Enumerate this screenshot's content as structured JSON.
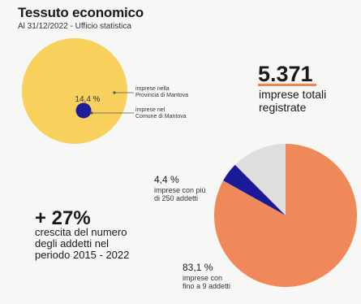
{
  "header": {
    "title": "Tessuto economico",
    "subtitle": "Al 31/12/2022 - Ufficio statistica"
  },
  "colors": {
    "province_circle": "#f7d15c",
    "comune_circle": "#1e1e9a",
    "accent_line": "#f0864f",
    "pie_small": "#f0895a",
    "pie_large": "#1a1a99",
    "pie_other": "#dedede"
  },
  "stats": {
    "total_value": "5.371",
    "total_label_line1": "imprese totali",
    "total_label_line2": "registrate",
    "growth_value": "+ 27%",
    "growth_line1": "crescita del numero",
    "growth_line2": "degli addetti nel",
    "growth_line3": "periodo 2015 - 2022"
  },
  "chart_data": [
    {
      "type": "bubble",
      "title": "",
      "series": [
        {
          "name": "imprese nella Provincia di Mantova",
          "value": 100
        },
        {
          "name": "imprese nel Comune di Mantova",
          "value": 14.4
        }
      ],
      "labels": {
        "percent": "14,4 %",
        "province_line1": "imprese nella",
        "province_line2": "Provincia di Mantova",
        "comune_line1": "imprese nel",
        "comune_line2": "Comune di Mantova"
      }
    },
    {
      "type": "pie",
      "title": "",
      "slices": [
        {
          "label": "imprese con fino a 9 addetti",
          "value": 83.1,
          "color": "#f0895a"
        },
        {
          "label": "imprese con più di 250 addetti",
          "value": 4.4,
          "color": "#1a1a99"
        },
        {
          "label": "",
          "value": 12.5,
          "color": "#dedede"
        }
      ],
      "labels": {
        "large_value": "83,1 %",
        "large_line1": "imprese con",
        "large_line2": "fino a 9 addetti",
        "small_value": "4,4 %",
        "small_line1": "imprese con più",
        "small_line2": "di 250 addetti"
      }
    }
  ]
}
